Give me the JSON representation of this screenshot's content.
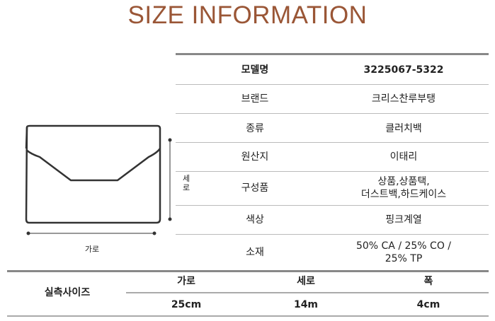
{
  "title": "SIZE INFORMATION",
  "diagram": {
    "width_label": "가로",
    "height_label": "세로"
  },
  "spec_table": [
    {
      "label": "모델명",
      "value": "3225067-5322"
    },
    {
      "label": "브랜드",
      "value": "크리스찬루부탱"
    },
    {
      "label": "종류",
      "value": "클러치백"
    },
    {
      "label": "원산지",
      "value": "이태리"
    },
    {
      "label": "구성품",
      "value": "상품,상품택,\n더스트백,하드케이스"
    },
    {
      "label": "색상",
      "value": "핑크계열"
    },
    {
      "label": "소재",
      "value": "50% CA / 25% CO /\n25% TP"
    }
  ],
  "measure": {
    "label": "실측사이즈",
    "headers": [
      "가로",
      "세로",
      "폭"
    ],
    "values": [
      "25cm",
      "14m",
      "4cm"
    ]
  }
}
